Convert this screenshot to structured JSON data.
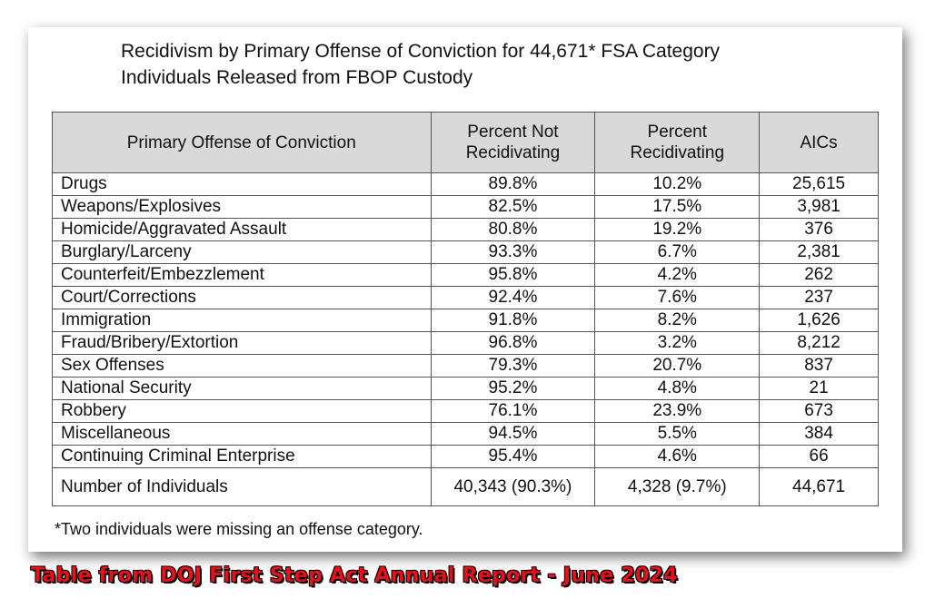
{
  "title": {
    "line1": "Recidivism by Primary Offense of Conviction for 44,671* FSA Category",
    "line2": "Individuals Released from FBOP Custody"
  },
  "table": {
    "headers": {
      "offense": "Primary Offense of Conviction",
      "not_recid_1": "Percent Not",
      "not_recid_2": "Recidivating",
      "recid_1": "Percent",
      "recid_2": "Recidivating",
      "aics": "AICs"
    },
    "rows": [
      {
        "offense": "Drugs",
        "not_recid": "89.8%",
        "recid": "10.2%",
        "aics": "25,615"
      },
      {
        "offense": "Weapons/Explosives",
        "not_recid": "82.5%",
        "recid": "17.5%",
        "aics": "3,981"
      },
      {
        "offense": "Homicide/Aggravated Assault",
        "not_recid": "80.8%",
        "recid": "19.2%",
        "aics": "376"
      },
      {
        "offense": "Burglary/Larceny",
        "not_recid": "93.3%",
        "recid": "6.7%",
        "aics": "2,381"
      },
      {
        "offense": "Counterfeit/Embezzlement",
        "not_recid": "95.8%",
        "recid": "4.2%",
        "aics": "262"
      },
      {
        "offense": "Court/Corrections",
        "not_recid": "92.4%",
        "recid": "7.6%",
        "aics": "237"
      },
      {
        "offense": "Immigration",
        "not_recid": "91.8%",
        "recid": "8.2%",
        "aics": "1,626"
      },
      {
        "offense": "Fraud/Bribery/Extortion",
        "not_recid": "96.8%",
        "recid": "3.2%",
        "aics": "8,212"
      },
      {
        "offense": "Sex Offenses",
        "not_recid": "79.3%",
        "recid": "20.7%",
        "aics": "837"
      },
      {
        "offense": "National Security",
        "not_recid": "95.2%",
        "recid": "4.8%",
        "aics": "21"
      },
      {
        "offense": "Robbery",
        "not_recid": "76.1%",
        "recid": "23.9%",
        "aics": "673"
      },
      {
        "offense": "Miscellaneous",
        "not_recid": "94.5%",
        "recid": "5.5%",
        "aics": "384"
      },
      {
        "offense": "Continuing Criminal Enterprise",
        "not_recid": "95.4%",
        "recid": "4.6%",
        "aics": "66"
      }
    ],
    "total": {
      "offense": "Number of Individuals",
      "not_recid": "40,343 (90.3%)",
      "recid": "4,328 (9.7%)",
      "aics": "44,671"
    }
  },
  "footnote": "*Two individuals were missing an offense category.",
  "caption": "Table from DOJ First Step Act Annual Report - June 2024",
  "colors": {
    "header_bg": "#d9d9d9",
    "caption_red": "#e8101a"
  }
}
